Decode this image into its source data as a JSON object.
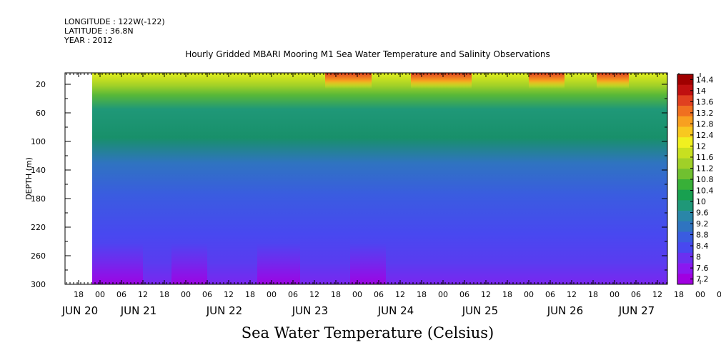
{
  "header": {
    "longitude": "LONGITUDE : 122W(-122)",
    "latitude": "LATITUDE : 36.8N",
    "year": "YEAR : 2012"
  },
  "chart_data": {
    "type": "heatmap",
    "title": "Hourly Gridded MBARI Mooring M1 Sea Water Temperature and Salinity Observations",
    "xlabel": "Sea Water Temperature (Celsius)",
    "ylabel": "DEPTH (m)",
    "y_axis": {
      "ylim": [
        300,
        4
      ],
      "ticks": [
        20,
        60,
        100,
        140,
        180,
        220,
        260,
        300
      ],
      "inverted": true
    },
    "x_axis": {
      "hour_ticks": [
        "18",
        "00",
        "06",
        "12",
        "18",
        "00",
        "06",
        "12",
        "18",
        "00",
        "06",
        "12",
        "18",
        "00",
        "06",
        "12",
        "18",
        "00",
        "06",
        "12",
        "18",
        "00",
        "06",
        "12",
        "18",
        "00",
        "06",
        "12",
        "18",
        "00",
        "06",
        "12"
      ],
      "date_labels": [
        "JUN 20",
        "JUN 21",
        "JUN 22",
        "JUN 23",
        "JUN 24",
        "JUN 25",
        "JUN 26",
        "JUN 27"
      ]
    },
    "colorbar": {
      "levels": [
        7.2,
        7.6,
        8,
        8.4,
        8.8,
        9.2,
        9.6,
        10,
        10.4,
        10.8,
        11.2,
        11.6,
        12,
        12.4,
        12.8,
        13.2,
        13.6,
        14,
        14.4
      ],
      "labels": [
        "14.4",
        "14",
        "13.6",
        "13.2",
        "12.8",
        "12.4",
        "12",
        "11.6",
        "11.2",
        "10.8",
        "10.4",
        "10",
        "9.6",
        "9.2",
        "8.8",
        "8.4",
        "8",
        "7.6",
        "7.2"
      ],
      "colors": [
        "#a000e0",
        "#8a18f0",
        "#6a30f0",
        "#4848f0",
        "#3a5ce0",
        "#2f74c0",
        "#2a86a8",
        "#1f9878",
        "#18a050",
        "#38b038",
        "#70c030",
        "#a0d028",
        "#c8e020",
        "#f0f020",
        "#f8c820",
        "#f8a020",
        "#f07020",
        "#e04020",
        "#c01010",
        "#a00000"
      ]
    },
    "profile_note": "temperature decreases with depth: ~12-14.4 near surface, ~9.5-10.5 at 60-100 m, ~8.4-8.8 at 140-220 m, ~7.2-8 near 300 m"
  }
}
